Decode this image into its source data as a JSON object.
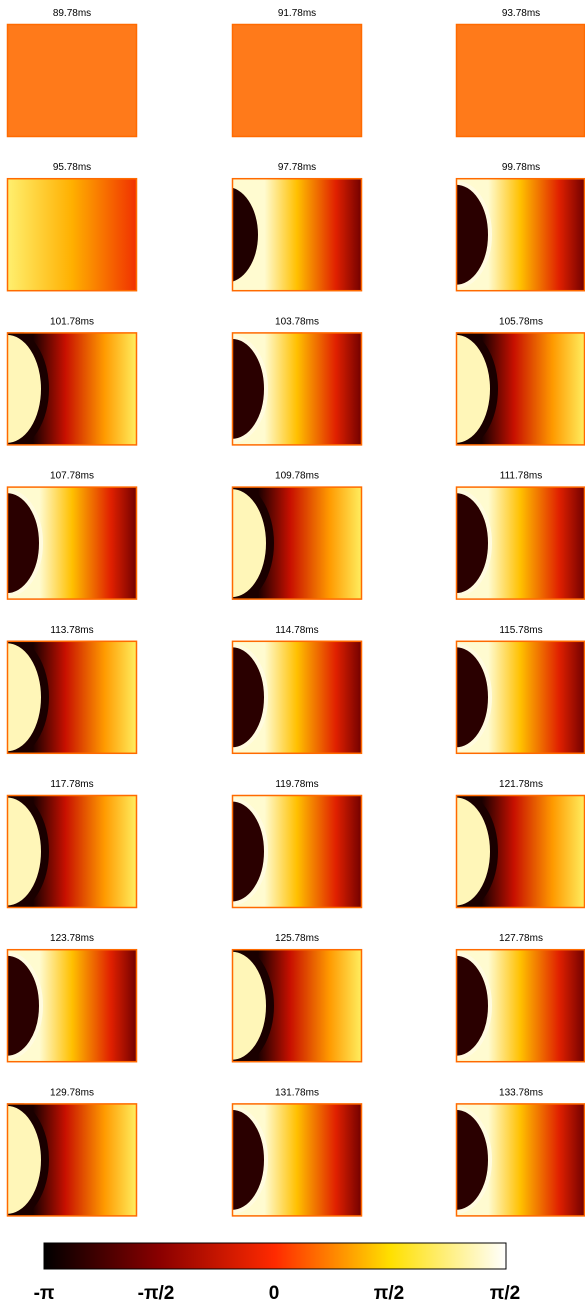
{
  "panels": [
    {
      "title": "89.78ms"
    },
    {
      "title": "91.78ms"
    },
    {
      "title": "93.78ms"
    },
    {
      "title": "95.78ms"
    },
    {
      "title": "97.78ms"
    },
    {
      "title": "99.78ms"
    },
    {
      "title": "101.78ms"
    },
    {
      "title": "103.78ms"
    },
    {
      "title": "105.78ms"
    },
    {
      "title": "107.78ms"
    },
    {
      "title": "109.78ms"
    },
    {
      "title": "111.78ms"
    },
    {
      "title": "113.78ms"
    },
    {
      "title": "114.78ms"
    },
    {
      "title": "115.78ms"
    },
    {
      "title": "117.78ms"
    },
    {
      "title": "119.78ms"
    },
    {
      "title": "121.78ms"
    },
    {
      "title": "123.78ms"
    },
    {
      "title": "125.78ms"
    },
    {
      "title": "127.78ms"
    },
    {
      "title": "129.78ms"
    },
    {
      "title": "131.78ms"
    },
    {
      "title": "133.78ms"
    }
  ],
  "colorbar": {
    "labels": [
      "-π",
      "-π/2",
      "0",
      "π/2",
      "π/2"
    ]
  }
}
